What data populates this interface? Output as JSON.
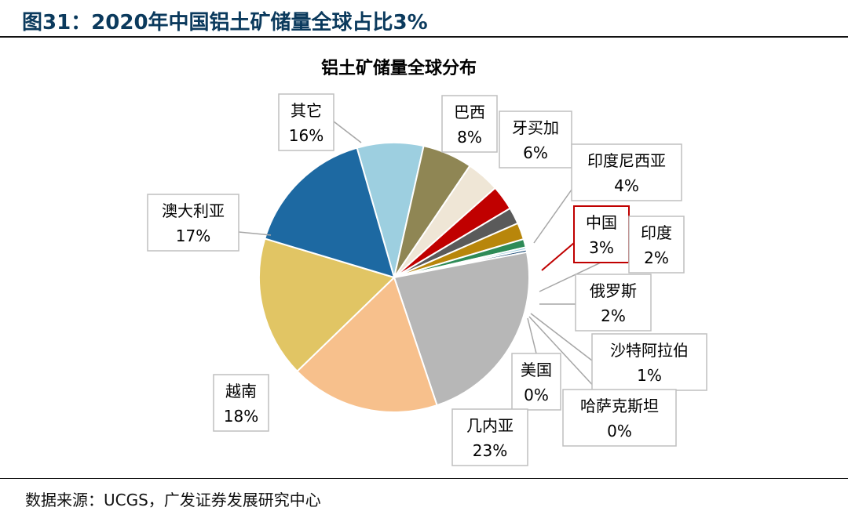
{
  "header": {
    "figure_title": "图31：2020年中国铝土矿储量全球占比3%"
  },
  "footer": {
    "source": "数据来源：UCGS，广发证券发展研究中心"
  },
  "chart_data": {
    "type": "pie",
    "title": "铝土矿储量全球分布",
    "slices": [
      {
        "name": "巴西",
        "value": 8,
        "value_label": "8%",
        "color": "#9dcfe0"
      },
      {
        "name": "牙买加",
        "value": 6,
        "value_label": "6%",
        "color": "#8f8654"
      },
      {
        "name": "印度尼西亚",
        "value": 4,
        "value_label": "4%",
        "color": "#efe6d6"
      },
      {
        "name": "中国",
        "value": 3,
        "value_label": "3%",
        "color": "#c00000",
        "highlight": true
      },
      {
        "name": "印度",
        "value": 2,
        "value_label": "2%",
        "color": "#5a5a5a"
      },
      {
        "name": "俄罗斯",
        "value": 2,
        "value_label": "2%",
        "color": "#b8860b"
      },
      {
        "name": "沙特阿拉伯",
        "value": 1,
        "value_label": "1%",
        "color": "#2e8b57"
      },
      {
        "name": "哈萨克斯坦",
        "value": 0.3,
        "value_label": "0%",
        "color": "#9dcfe0"
      },
      {
        "name": "美国",
        "value": 0.3,
        "value_label": "0%",
        "color": "#1f4e79"
      },
      {
        "name": "几内亚",
        "value": 23,
        "value_label": "23%",
        "color": "#b7b7b7"
      },
      {
        "name": "越南",
        "value": 18,
        "value_label": "18%",
        "color": "#f7c08c"
      },
      {
        "name": "澳大利亚",
        "value": 17,
        "value_label": "17%",
        "color": "#e1c564"
      },
      {
        "name": "其它",
        "value": 16,
        "value_label": "16%",
        "color": "#1d69a2"
      }
    ]
  }
}
